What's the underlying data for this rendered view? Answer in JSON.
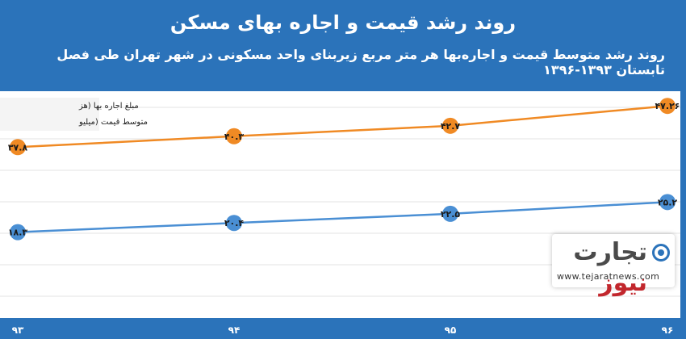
{
  "header": {
    "title": "روند رشد قیمت و اجاره بهای مسکن",
    "subtitle": "روند رشد متوسط قیمت و اجاره‌بها هر متر مربع زیربنای واحد مسکونی در شهر تهران طی فصل تابستان ۱۳۹۳-۱۳۹۶"
  },
  "logo": {
    "brand": "تجارت نیوز",
    "brand_part1": "تجارت",
    "brand_part2": "نیوز",
    "url": "www.tejaratnews.com"
  },
  "colors": {
    "background": "#2b73ba",
    "rent_series": "#f08a24",
    "price_series": "#4a8fd4",
    "logo_red": "#c2272d"
  },
  "chart_data": {
    "type": "line",
    "categories": [
      "۹۳",
      "۹۴",
      "۹۵",
      "۹۶"
    ],
    "series": [
      {
        "name": "مبلغ اجاره بها (هز",
        "values": [
          37.8,
          40.3,
          42.7,
          47.26
        ],
        "labels": [
          "۳۷.۸",
          "۴۰.۳",
          "۴۲.۷",
          "۴۷.۲۶"
        ],
        "color": "#f08a24"
      },
      {
        "name": "متوسط قیمت (میلیو",
        "values": [
          18.3,
          20.4,
          22.5,
          25.2
        ],
        "labels": [
          "۱۸.۳",
          "۲۰.۴",
          "۲۲.۵",
          "۲۵.۲"
        ],
        "color": "#4a8fd4"
      }
    ],
    "gridlines": true,
    "legend_position": "top-left"
  }
}
